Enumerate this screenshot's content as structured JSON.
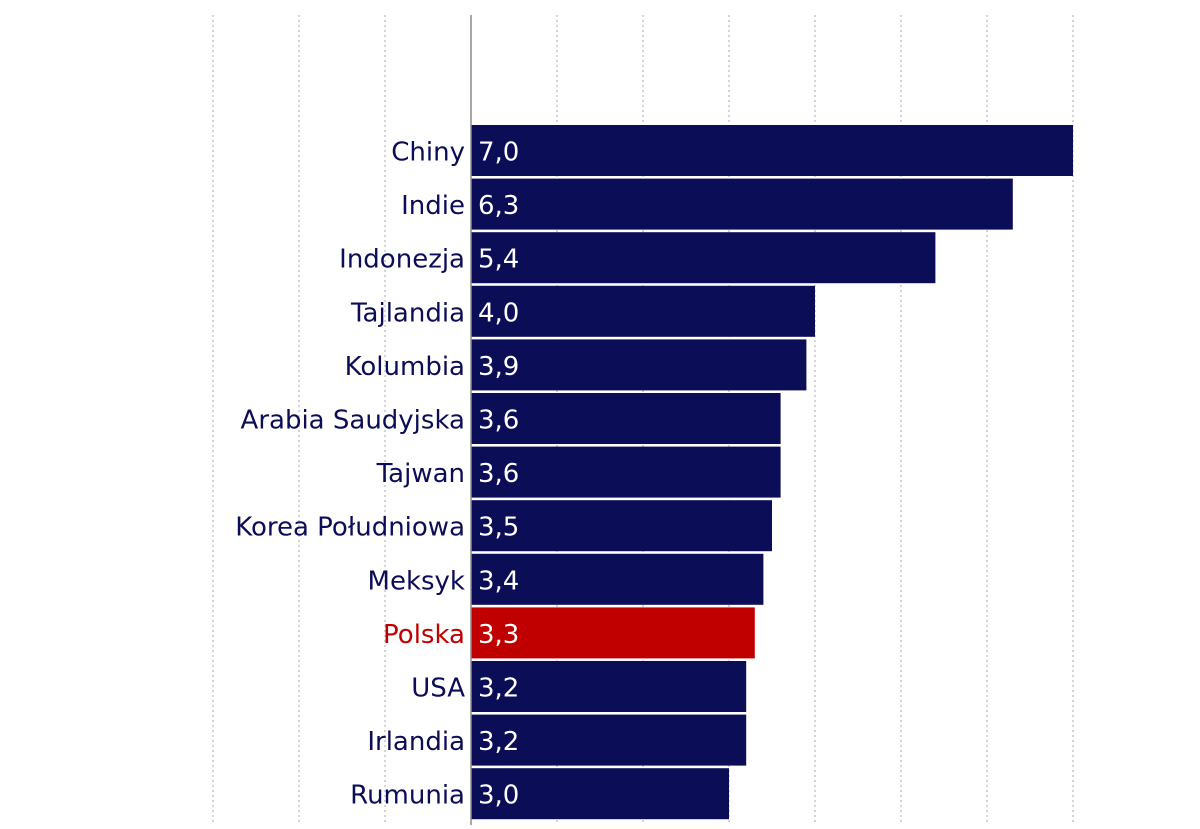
{
  "chart_data": {
    "type": "bar",
    "orientation": "horizontal",
    "categories": [
      "Chiny",
      "Indie",
      "Indonezja",
      "Tajlandia",
      "Kolumbia",
      "Arabia Saudyjska",
      "Tajwan",
      "Korea Południowa",
      "Meksyk",
      "Polska",
      "USA",
      "Irlandia",
      "Rumunia"
    ],
    "values": [
      7.0,
      6.3,
      5.4,
      4.0,
      3.9,
      3.6,
      3.6,
      3.5,
      3.4,
      3.3,
      3.2,
      3.2,
      3.0
    ],
    "value_labels": [
      "7,0",
      "6,3",
      "5,4",
      "4,0",
      "3,9",
      "3,6",
      "3,6",
      "3,5",
      "3,4",
      "3,3",
      "3,2",
      "3,2",
      "3,0"
    ],
    "highlight": "Polska",
    "xlim": [
      -3,
      7
    ],
    "grid": true,
    "colors": {
      "bar": "#0b0d56",
      "highlight_bar": "#c00000",
      "label": "#0b0d56",
      "highlight_label": "#c00000",
      "value_text": "#ffffff",
      "grid": "#b8b8b8",
      "axis": "#8c8c8c"
    }
  }
}
